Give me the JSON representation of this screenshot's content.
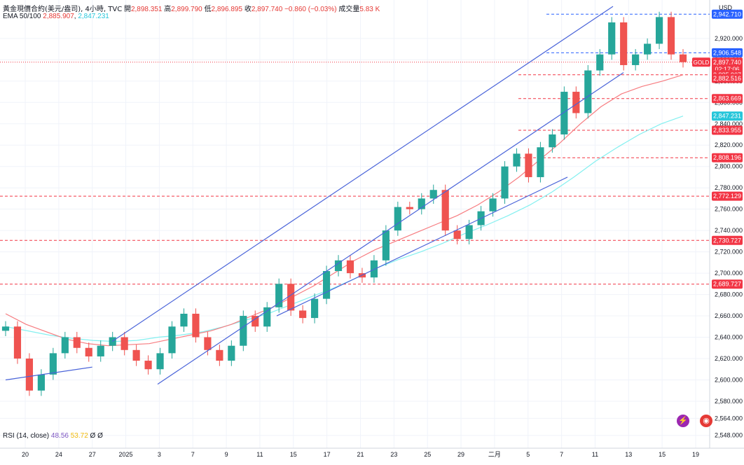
{
  "header": {
    "symbol": "黃金現價合約(美元/盎司), 4小時, TVC",
    "open_label": "開",
    "open": "2,898.351",
    "high_label": "高",
    "high": "2,899.790",
    "low_label": "低",
    "low": "2,896.895",
    "close_label": "收",
    "close": "2,897.740",
    "change": "−0.860 (−0.03%)",
    "volume_label": "成交量",
    "volume": "5.83 K",
    "ema_label": "EMA 50/100",
    "ema50": "2,885.907",
    "ema100": "2,847.231"
  },
  "rsi": {
    "label": "RSI (14, close)",
    "v1": "48.56",
    "v2": "53.72",
    "v3": "Ø",
    "v4": "Ø"
  },
  "currency": "USD",
  "colors": {
    "up": "#26a69a",
    "down": "#ef5350",
    "ema50": "#f77c80",
    "ema100": "#84f0f0",
    "trend": "#4a64d9",
    "grid": "#f0f3fa"
  },
  "chart_data": {
    "type": "candlestick",
    "symbol": "GOLD",
    "timeframe": "4小時",
    "x_ticks": [
      "20",
      "24",
      "27",
      "2025",
      "3",
      "7",
      "9",
      "11",
      "15",
      "17",
      "21",
      "23",
      "25",
      "29",
      "二月",
      "5",
      "7",
      "11",
      "13",
      "15",
      "19"
    ],
    "y_ticks": [
      2548,
      2564,
      2580,
      2600,
      2620,
      2640,
      2660,
      2680,
      2700,
      2720,
      2740,
      2760,
      2780,
      2800,
      2820,
      2840,
      2860,
      2880,
      2900,
      2920
    ],
    "y_tick_labels": [
      "2,548.000",
      "2,564.000",
      "2,580.000",
      "2,600.000",
      "2,620.000",
      "2,640.000",
      "2,660.000",
      "2,680.000",
      "2,700.000",
      "2,720.000",
      "2,740.000",
      "2,760.000",
      "2,780.000",
      "2,800.000",
      "2,820.000",
      "2,840.000",
      "2,860.000",
      "2,880.000",
      "2,900.000",
      "2,920.000"
    ],
    "ylim": [
      2536,
      2956
    ],
    "levels": [
      {
        "value": 2942.71,
        "label": "2,942.710",
        "color": "#2962ff",
        "style": "dashed"
      },
      {
        "value": 2906.548,
        "label": "2,906.548",
        "color": "#2962ff",
        "style": "dashed"
      },
      {
        "value": 2897.74,
        "label": "2,897.740",
        "sublabel": "02:17:06",
        "color": "#f23645",
        "style": "dotted",
        "tag": "GOLD"
      },
      {
        "value": 2885.907,
        "label": "2,885.907",
        "color": "#f23645",
        "style": "dashed"
      },
      {
        "value": 2882.516,
        "label": "2,882.516",
        "color": "#f23645",
        "style": "none"
      },
      {
        "value": 2863.669,
        "label": "2,863.669",
        "color": "#f23645",
        "style": "dashed"
      },
      {
        "value": 2847.231,
        "label": "2,847.231",
        "color": "#26c6da",
        "style": "none"
      },
      {
        "value": 2833.955,
        "label": "2,833.955",
        "color": "#f23645",
        "style": "dashed"
      },
      {
        "value": 2808.196,
        "label": "2,808.196",
        "color": "#f23645",
        "style": "dashed"
      },
      {
        "value": 2772.129,
        "label": "2,772.129",
        "color": "#f23645",
        "style": "dashed"
      },
      {
        "value": 2730.727,
        "label": "2,730.727",
        "color": "#f23645",
        "style": "dashed"
      },
      {
        "value": 2689.727,
        "label": "2,689.727",
        "color": "#f23645",
        "style": "dashed"
      }
    ],
    "close_path": [
      2650,
      2620,
      2590,
      2605,
      2625,
      2640,
      2630,
      2622,
      2632,
      2640,
      2628,
      2618,
      2610,
      2625,
      2650,
      2662,
      2640,
      2628,
      2618,
      2632,
      2660,
      2650,
      2668,
      2690,
      2665,
      2658,
      2676,
      2702,
      2712,
      2700,
      2696,
      2712,
      2740,
      2762,
      2760,
      2770,
      2778,
      2740,
      2732,
      2745,
      2758,
      2770,
      2800,
      2812,
      2790,
      2818,
      2830,
      2870,
      2850,
      2890,
      2905,
      2935,
      2895,
      2905,
      2915,
      2940,
      2905,
      2897.74
    ],
    "ema50_path": [
      2662,
      2652,
      2645,
      2638,
      2634,
      2632,
      2633,
      2634,
      2638,
      2642,
      2646,
      2652,
      2660,
      2668,
      2678,
      2688,
      2700,
      2712,
      2722,
      2730,
      2738,
      2746,
      2754,
      2764,
      2776,
      2790,
      2806,
      2822,
      2840,
      2856,
      2868,
      2875,
      2880,
      2885.907
    ],
    "ema100_path": [
      2650,
      2646,
      2642,
      2639,
      2637,
      2636,
      2637,
      2640,
      2642,
      2645,
      2650,
      2656,
      2662,
      2670,
      2678,
      2686,
      2695,
      2705,
      2713,
      2720,
      2728,
      2737,
      2745,
      2754,
      2764,
      2776,
      2790,
      2805,
      2818,
      2830,
      2840,
      2847.231
    ],
    "trendlines": [
      {
        "from": [
          "2024-12-17",
          2600
        ],
        "to": [
          "2024-12-27",
          2612
        ]
      },
      {
        "from": [
          "2024-12-28",
          2636
        ],
        "to": [
          "2025-02-11",
          2950
        ]
      },
      {
        "from": [
          "2024-12-30",
          2596
        ],
        "to": [
          "2025-02-12",
          2888
        ]
      },
      {
        "from": [
          "2025-01-13",
          2660
        ],
        "to": [
          "2025-02-07",
          2790
        ]
      }
    ]
  }
}
